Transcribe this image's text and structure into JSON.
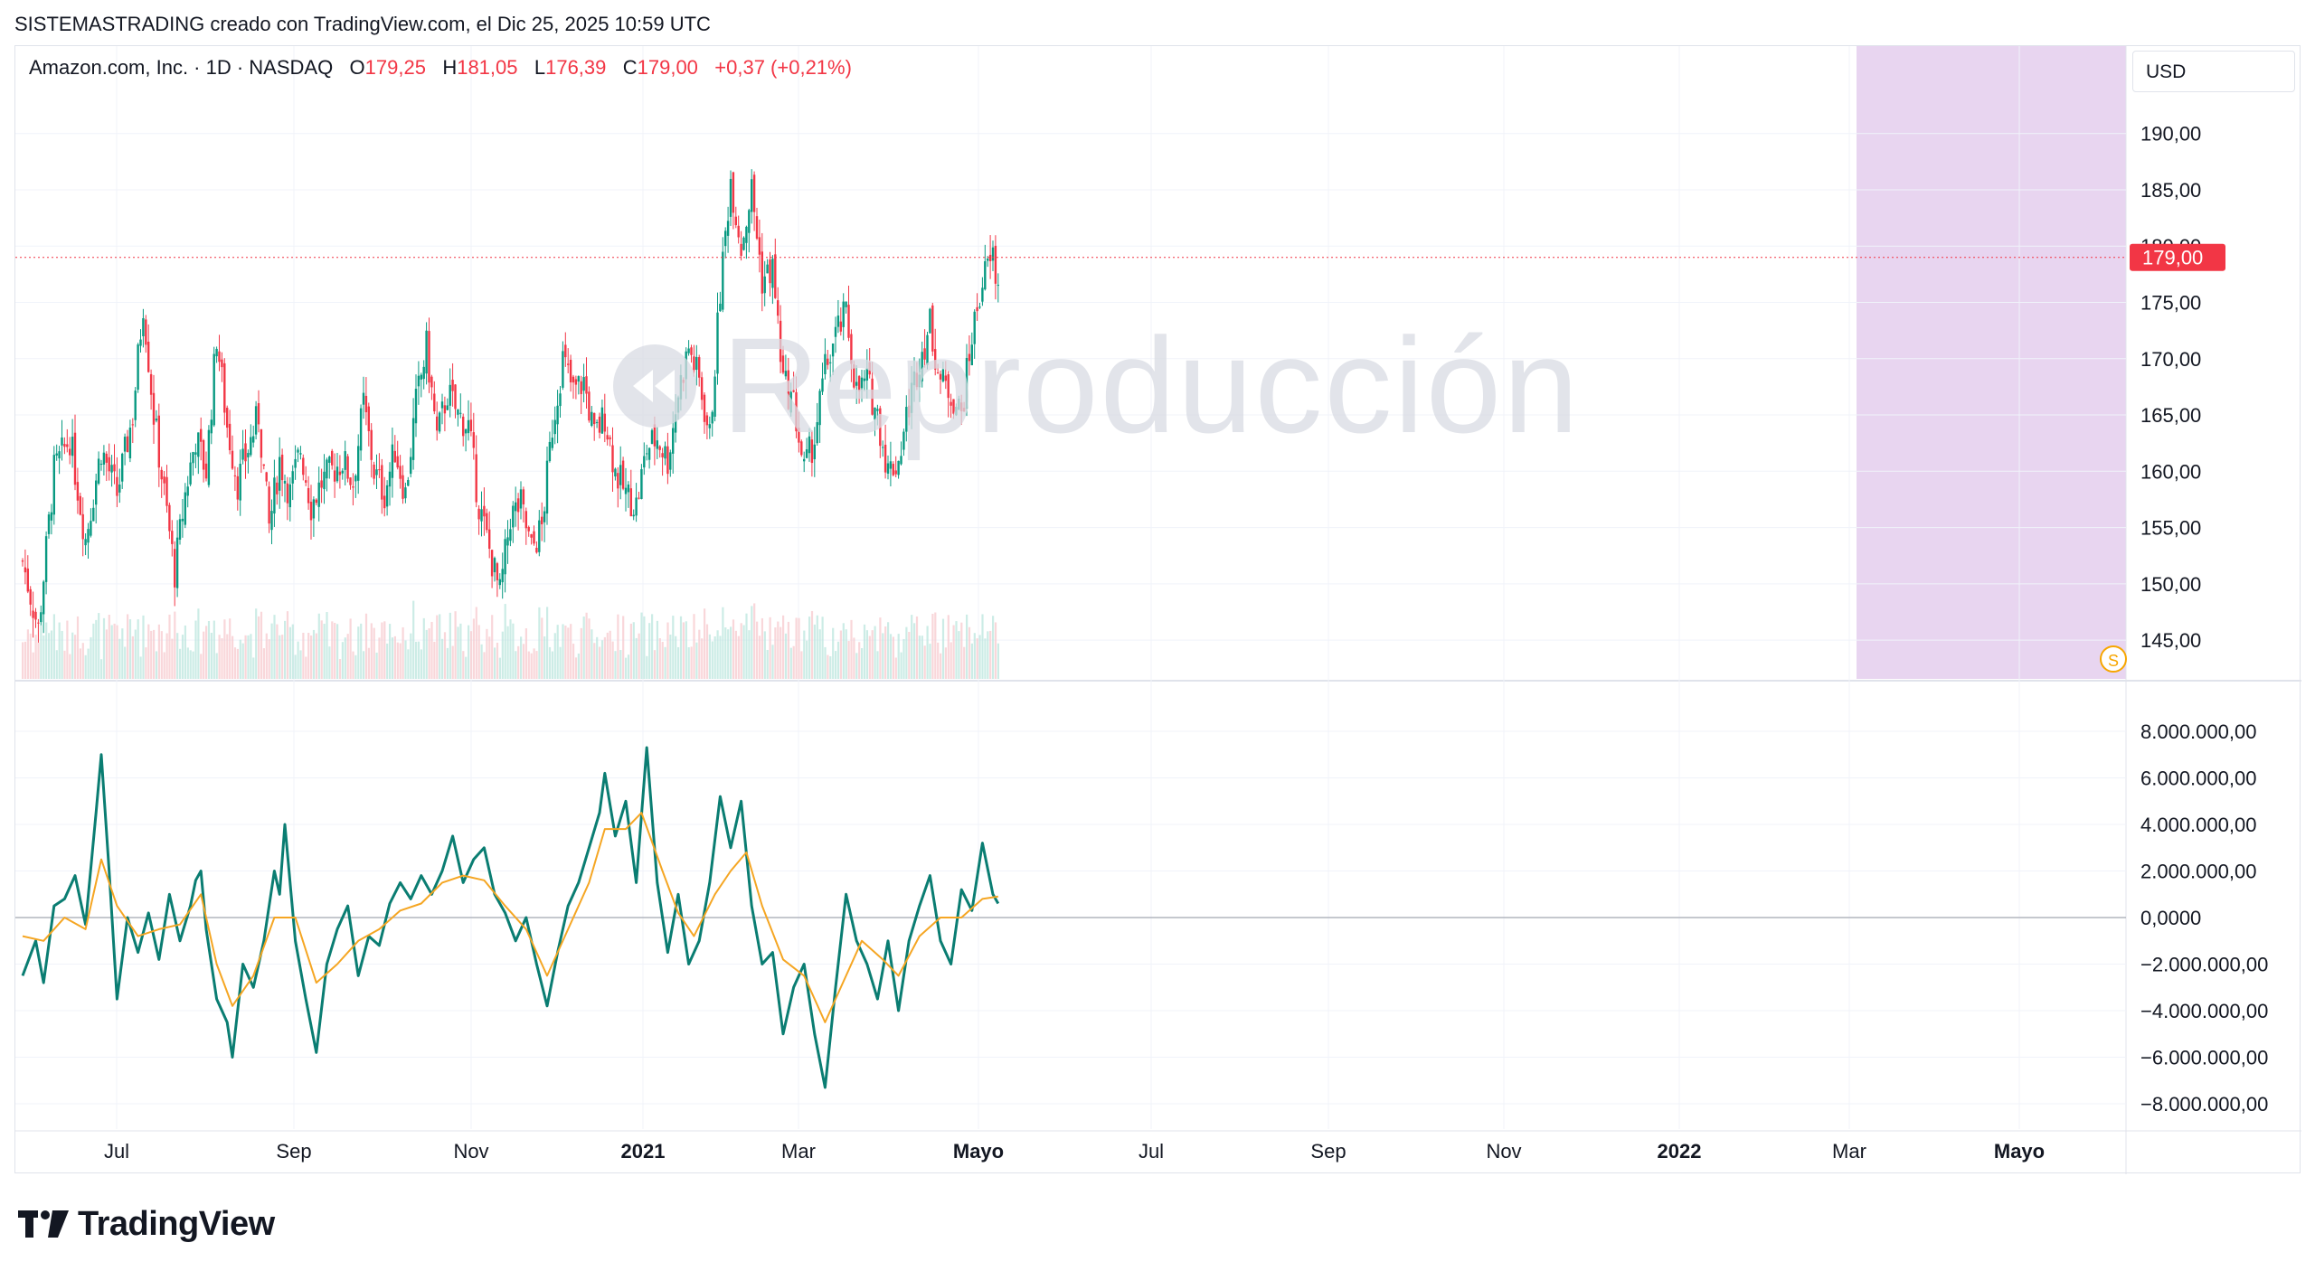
{
  "caption": "SISTEMASTRADING creado con TradingView.com, el Dic 25, 2025 10:59 UTC",
  "legend": {
    "symbol": "Amazon.com, Inc. · 1D · NASDAQ",
    "o_label": "O",
    "o_value": "179,25",
    "h_label": "H",
    "h_value": "181,05",
    "l_label": "L",
    "l_value": "176,39",
    "c_label": "C",
    "c_value": "179,00",
    "change": "+0,37 (+0,21%)"
  },
  "currency": "USD",
  "watermark": "Reproducción",
  "brand": "TradingView",
  "colors": {
    "up": "#089981",
    "down": "#f23645",
    "oscillator": "#0a7d72",
    "signal": "#f5a623",
    "highlight": "#e8d5f0",
    "last_price": "#f23645"
  },
  "chart_data": [
    {
      "type": "candlestick",
      "title": "Amazon.com, Inc. · 1D · NASDAQ",
      "ylim": [
        143,
        196
      ],
      "yticks": [
        "145,00",
        "150,00",
        "155,00",
        "160,00",
        "165,00",
        "170,00",
        "175,00",
        "180,00",
        "185,00",
        "190,00"
      ],
      "xticks": [
        "Jul",
        "Sep",
        "Nov",
        "2021",
        "Mar",
        "Mayo",
        "Jul",
        "Sep",
        "Nov",
        "2022",
        "Mar",
        "Mayo"
      ],
      "last_price": 179.0,
      "last_price_label": "179,00",
      "close_path": [
        [
          0,
          152
        ],
        [
          6,
          146
        ],
        [
          12,
          160
        ],
        [
          18,
          163
        ],
        [
          24,
          154
        ],
        [
          30,
          162
        ],
        [
          36,
          158
        ],
        [
          42,
          165
        ],
        [
          46,
          175
        ],
        [
          50,
          165
        ],
        [
          54,
          158
        ],
        [
          58,
          151
        ],
        [
          62,
          158
        ],
        [
          66,
          163
        ],
        [
          70,
          160
        ],
        [
          74,
          172
        ],
        [
          78,
          164
        ],
        [
          82,
          159
        ],
        [
          86,
          162
        ],
        [
          90,
          165
        ],
        [
          94,
          155
        ],
        [
          98,
          161
        ],
        [
          102,
          158
        ],
        [
          106,
          162
        ],
        [
          110,
          157
        ],
        [
          114,
          159
        ],
        [
          118,
          160
        ],
        [
          122,
          161
        ],
        [
          126,
          159
        ],
        [
          130,
          166
        ],
        [
          134,
          160
        ],
        [
          138,
          158
        ],
        [
          142,
          162
        ],
        [
          146,
          158
        ],
        [
          150,
          166
        ],
        [
          154,
          171
        ],
        [
          158,
          163
        ],
        [
          162,
          167
        ],
        [
          166,
          165
        ],
        [
          170,
          164
        ],
        [
          174,
          157
        ],
        [
          178,
          153
        ],
        [
          182,
          149
        ],
        [
          186,
          156
        ],
        [
          190,
          157
        ],
        [
          194,
          153
        ],
        [
          198,
          155
        ],
        [
          202,
          164
        ],
        [
          206,
          170
        ],
        [
          210,
          167
        ],
        [
          214,
          168
        ],
        [
          218,
          163
        ],
        [
          222,
          165
        ],
        [
          226,
          160
        ],
        [
          230,
          158
        ],
        [
          234,
          157
        ],
        [
          238,
          162
        ],
        [
          242,
          163
        ],
        [
          246,
          161
        ],
        [
          250,
          167
        ],
        [
          254,
          171
        ],
        [
          258,
          168
        ],
        [
          262,
          163
        ],
        [
          266,
          176
        ],
        [
          270,
          186
        ],
        [
          274,
          180
        ],
        [
          278,
          185
        ],
        [
          282,
          177
        ],
        [
          286,
          178
        ],
        [
          290,
          168
        ],
        [
          294,
          166
        ],
        [
          298,
          160
        ],
        [
          302,
          163
        ],
        [
          306,
          169
        ],
        [
          310,
          172
        ],
        [
          314,
          174
        ],
        [
          318,
          167
        ],
        [
          322,
          168
        ],
        [
          326,
          165
        ],
        [
          330,
          160
        ],
        [
          334,
          161
        ],
        [
          338,
          166
        ],
        [
          342,
          170
        ],
        [
          346,
          173
        ],
        [
          350,
          168
        ],
        [
          354,
          167
        ],
        [
          358,
          165
        ],
        [
          362,
          172
        ],
        [
          366,
          177
        ],
        [
          370,
          179
        ],
        [
          372,
          176
        ]
      ],
      "volume_note": "volume bars along bottom of price pane"
    },
    {
      "type": "line",
      "yticks": [
        "8.000.000,00",
        "6.000.000,00",
        "4.000.000,00",
        "2.000.000,00",
        "0,0000",
        "−2.000.000,00",
        "−4.000.000,00",
        "−6.000.000,00",
        "−8.000.000,00"
      ],
      "ylim": [
        -8000000,
        8000000
      ],
      "series": [
        {
          "role": "oscillator",
          "points": [
            [
              0,
              -2.5
            ],
            [
              5,
              -1
            ],
            [
              8,
              -2.8
            ],
            [
              12,
              0.5
            ],
            [
              16,
              0.8
            ],
            [
              20,
              1.8
            ],
            [
              24,
              -0.3
            ],
            [
              28,
              4.5
            ],
            [
              30,
              7
            ],
            [
              33,
              2
            ],
            [
              36,
              -3.5
            ],
            [
              40,
              0
            ],
            [
              44,
              -1.5
            ],
            [
              48,
              0.2
            ],
            [
              52,
              -1.8
            ],
            [
              56,
              1
            ],
            [
              60,
              -1
            ],
            [
              64,
              0.5
            ],
            [
              66,
              1.6
            ],
            [
              68,
              2
            ],
            [
              70,
              -0.5
            ],
            [
              74,
              -3.5
            ],
            [
              78,
              -4.5
            ],
            [
              80,
              -6
            ],
            [
              84,
              -2
            ],
            [
              88,
              -3
            ],
            [
              92,
              -1
            ],
            [
              96,
              2
            ],
            [
              98,
              1
            ],
            [
              100,
              4
            ],
            [
              104,
              -1
            ],
            [
              108,
              -3.5
            ],
            [
              112,
              -5.8
            ],
            [
              116,
              -2
            ],
            [
              120,
              -0.5
            ],
            [
              124,
              0.5
            ],
            [
              128,
              -2.5
            ],
            [
              132,
              -0.8
            ],
            [
              136,
              -1.2
            ],
            [
              140,
              0.6
            ],
            [
              144,
              1.5
            ],
            [
              148,
              0.8
            ],
            [
              152,
              1.8
            ],
            [
              156,
              1
            ],
            [
              160,
              2
            ],
            [
              164,
              3.5
            ],
            [
              168,
              1.5
            ],
            [
              172,
              2.5
            ],
            [
              176,
              3
            ],
            [
              180,
              1
            ],
            [
              184,
              0.2
            ],
            [
              188,
              -1
            ],
            [
              192,
              0
            ],
            [
              196,
              -2
            ],
            [
              200,
              -3.8
            ],
            [
              204,
              -1.5
            ],
            [
              208,
              0.5
            ],
            [
              212,
              1.5
            ],
            [
              216,
              3
            ],
            [
              220,
              4.5
            ],
            [
              222,
              6.2
            ],
            [
              226,
              3.5
            ],
            [
              230,
              5
            ],
            [
              234,
              1.5
            ],
            [
              238,
              7.3
            ],
            [
              242,
              1.5
            ],
            [
              246,
              -1.5
            ],
            [
              250,
              1
            ],
            [
              254,
              -2
            ],
            [
              258,
              -1
            ],
            [
              262,
              1.5
            ],
            [
              266,
              5.2
            ],
            [
              270,
              3
            ],
            [
              274,
              5
            ],
            [
              278,
              0.5
            ],
            [
              282,
              -2
            ],
            [
              286,
              -1.5
            ],
            [
              290,
              -5
            ],
            [
              294,
              -3
            ],
            [
              298,
              -2
            ],
            [
              302,
              -5
            ],
            [
              306,
              -7.3
            ],
            [
              310,
              -3
            ],
            [
              314,
              1
            ],
            [
              318,
              -1
            ],
            [
              322,
              -2
            ],
            [
              326,
              -3.5
            ],
            [
              330,
              -1
            ],
            [
              334,
              -4
            ],
            [
              338,
              -1
            ],
            [
              342,
              0.5
            ],
            [
              346,
              1.8
            ],
            [
              350,
              -1
            ],
            [
              354,
              -2
            ],
            [
              358,
              1.2
            ],
            [
              362,
              0.3
            ],
            [
              366,
              3.2
            ],
            [
              370,
              1
            ],
            [
              372,
              0.6
            ]
          ]
        },
        {
          "role": "signal",
          "points": [
            [
              0,
              -0.8
            ],
            [
              8,
              -1
            ],
            [
              16,
              0
            ],
            [
              24,
              -0.5
            ],
            [
              30,
              2.5
            ],
            [
              36,
              0.5
            ],
            [
              44,
              -0.8
            ],
            [
              52,
              -0.5
            ],
            [
              60,
              -0.3
            ],
            [
              68,
              1
            ],
            [
              74,
              -2
            ],
            [
              80,
              -3.8
            ],
            [
              88,
              -2.5
            ],
            [
              96,
              0
            ],
            [
              104,
              0
            ],
            [
              112,
              -2.8
            ],
            [
              120,
              -2
            ],
            [
              128,
              -1
            ],
            [
              136,
              -0.5
            ],
            [
              144,
              0.3
            ],
            [
              152,
              0.6
            ],
            [
              160,
              1.5
            ],
            [
              168,
              1.8
            ],
            [
              176,
              1.6
            ],
            [
              184,
              0.5
            ],
            [
              192,
              -0.5
            ],
            [
              200,
              -2.5
            ],
            [
              208,
              -0.5
            ],
            [
              216,
              1.5
            ],
            [
              222,
              3.8
            ],
            [
              230,
              3.8
            ],
            [
              236,
              4.5
            ],
            [
              244,
              2
            ],
            [
              250,
              0.2
            ],
            [
              256,
              -0.8
            ],
            [
              264,
              1
            ],
            [
              270,
              2
            ],
            [
              276,
              2.8
            ],
            [
              282,
              0.5
            ],
            [
              290,
              -1.8
            ],
            [
              298,
              -2.5
            ],
            [
              306,
              -4.5
            ],
            [
              314,
              -2.5
            ],
            [
              320,
              -1
            ],
            [
              328,
              -1.8
            ],
            [
              334,
              -2.5
            ],
            [
              342,
              -0.8
            ],
            [
              350,
              0
            ],
            [
              358,
              0
            ],
            [
              366,
              0.8
            ],
            [
              372,
              0.9
            ]
          ]
        }
      ]
    }
  ]
}
